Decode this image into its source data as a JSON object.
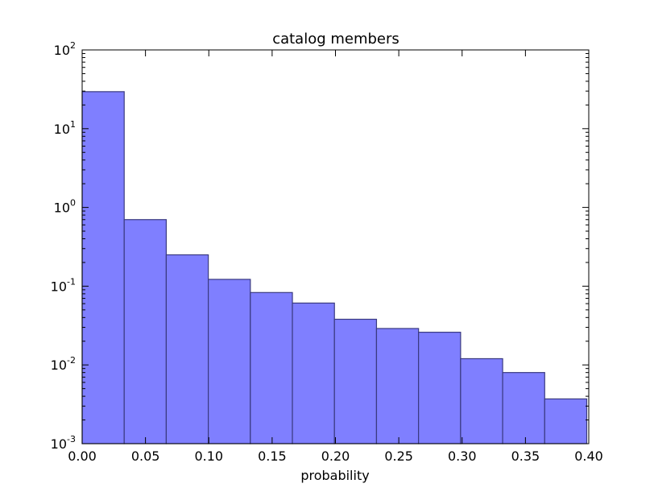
{
  "chart_data": {
    "type": "bar",
    "title": "catalog members",
    "xlabel": "probability",
    "ylabel": "",
    "xlim": [
      0.0,
      0.4
    ],
    "ylim": [
      0.001,
      100
    ],
    "yscale": "log",
    "grid": false,
    "bar_color": "#7f7fff",
    "edge_color": "#3a3a80",
    "bin_edges": [
      0.0,
      0.0332,
      0.0664,
      0.0996,
      0.1328,
      0.166,
      0.1992,
      0.2324,
      0.2656,
      0.2988,
      0.332,
      0.3652,
      0.3984
    ],
    "values": [
      29.5,
      0.7,
      0.25,
      0.122,
      0.083,
      0.061,
      0.038,
      0.029,
      0.026,
      0.012,
      0.008,
      0.0037
    ],
    "xticks": [
      {
        "value": 0.0,
        "label": "0.00"
      },
      {
        "value": 0.05,
        "label": "0.05"
      },
      {
        "value": 0.1,
        "label": "0.10"
      },
      {
        "value": 0.15,
        "label": "0.15"
      },
      {
        "value": 0.2,
        "label": "0.20"
      },
      {
        "value": 0.25,
        "label": "0.25"
      },
      {
        "value": 0.3,
        "label": "0.30"
      },
      {
        "value": 0.35,
        "label": "0.35"
      },
      {
        "value": 0.4,
        "label": "0.40"
      }
    ],
    "yticks": [
      {
        "value": 0.001,
        "base": "10",
        "exp": "-3"
      },
      {
        "value": 0.01,
        "base": "10",
        "exp": "-2"
      },
      {
        "value": 0.1,
        "base": "10",
        "exp": "-1"
      },
      {
        "value": 1,
        "base": "10",
        "exp": "0"
      },
      {
        "value": 10,
        "base": "10",
        "exp": "1"
      },
      {
        "value": 100,
        "base": "10",
        "exp": "2"
      }
    ]
  }
}
